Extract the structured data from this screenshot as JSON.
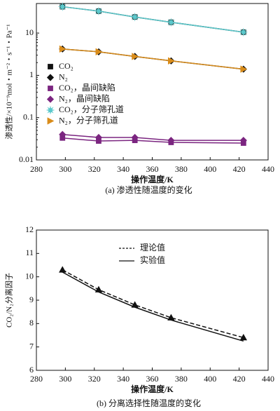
{
  "chart_data": [
    {
      "type": "line",
      "log": true,
      "ylabel": "渗透性/×10⁻⁹mol・m⁻²・s⁻¹・Pa⁻¹",
      "xlabel": "操作温度/K",
      "caption": "(a) 渗透性随温度的变化",
      "x": [
        298,
        323,
        348,
        373,
        423
      ],
      "xlim": [
        280,
        440
      ],
      "xticks": [
        280,
        300,
        320,
        340,
        360,
        380,
        400,
        420,
        440
      ],
      "ylim": [
        0.01,
        50
      ],
      "yticks": [
        0.01,
        0.1,
        1,
        10
      ],
      "series": [
        {
          "name": "CO₂",
          "color": "#111111",
          "marker": "square",
          "values": [
            42,
            33,
            24,
            18,
            10.5
          ]
        },
        {
          "name": "N₂",
          "color": "#111111",
          "marker": "diamond",
          "values": [
            4.2,
            3.6,
            2.8,
            2.2,
            1.4
          ]
        },
        {
          "name": "CO₂，晶间缺陷",
          "color": "#7b2580",
          "marker": "square",
          "values": [
            0.033,
            0.028,
            0.029,
            0.026,
            0.025
          ]
        },
        {
          "name": "N₂，晶间缺陷",
          "color": "#7b2580",
          "marker": "diamond",
          "values": [
            0.04,
            0.034,
            0.034,
            0.029,
            0.029
          ]
        },
        {
          "name": "CO₂，分子筛孔道",
          "color": "#5cc9cc",
          "marker": "star",
          "values": [
            42,
            33,
            24,
            18,
            10.5
          ]
        },
        {
          "name": "N₂，分子筛孔道",
          "color": "#d98c1a",
          "marker": "triangle-right",
          "values": [
            4.2,
            3.6,
            2.8,
            2.2,
            1.4
          ]
        }
      ]
    },
    {
      "type": "line",
      "log": false,
      "ylabel": "CO₂/N₂分离因子",
      "xlabel": "操作温度/K",
      "caption": "(b) 分离选择性随温度的变化",
      "x": [
        298,
        323,
        348,
        373,
        423
      ],
      "xlim": [
        280,
        440
      ],
      "xticks": [
        280,
        300,
        320,
        340,
        360,
        380,
        400,
        420,
        440
      ],
      "ylim": [
        6,
        12
      ],
      "yticks": [
        6,
        7,
        8,
        9,
        10,
        11,
        12
      ],
      "series": [
        {
          "name": "理论值",
          "color": "#111111",
          "dashed": true,
          "marker": "triangle",
          "values": [
            10.3,
            9.45,
            8.8,
            8.25,
            7.4
          ]
        },
        {
          "name": "实验值",
          "color": "#111111",
          "dashed": false,
          "values": [
            10.2,
            9.35,
            8.7,
            8.15,
            7.25
          ]
        }
      ]
    }
  ]
}
